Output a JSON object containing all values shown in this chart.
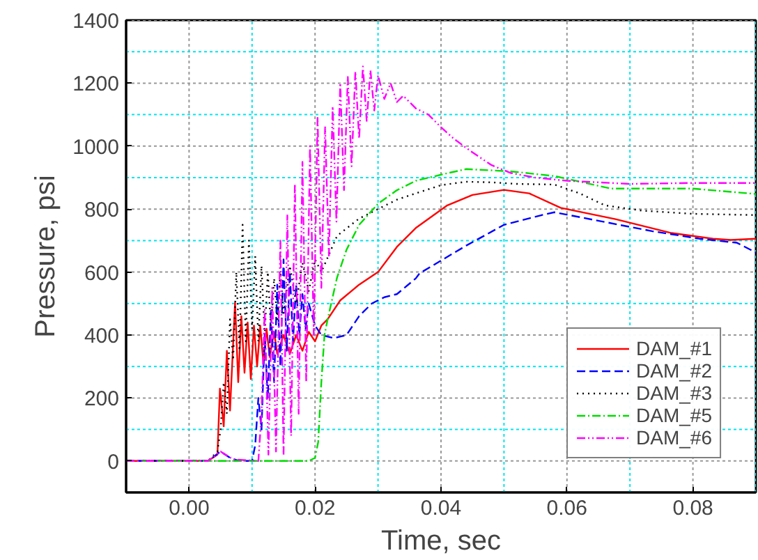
{
  "chart_data": {
    "type": "line",
    "xlabel": "Time, sec",
    "ylabel": "Pressure, psi",
    "xlim": [
      -0.01,
      0.09
    ],
    "xticks": [
      {
        "value": -0.01,
        "label": null
      },
      {
        "value": 0.0,
        "label": "0.00"
      },
      {
        "value": 0.01,
        "label": null
      },
      {
        "value": 0.02,
        "label": "0.02"
      },
      {
        "value": 0.03,
        "label": null
      },
      {
        "value": 0.04,
        "label": "0.04"
      },
      {
        "value": 0.05,
        "label": null
      },
      {
        "value": 0.06,
        "label": "0.06"
      },
      {
        "value": 0.07,
        "label": null
      },
      {
        "value": 0.08,
        "label": "0.08"
      },
      {
        "value": 0.09,
        "label": null
      }
    ],
    "ylim": [
      -100,
      1400
    ],
    "yticks": [
      {
        "value": -100,
        "label": null
      },
      0,
      {
        "value": 100,
        "label": null
      },
      200,
      {
        "value": 300,
        "label": null
      },
      400,
      {
        "value": 500,
        "label": null
      },
      600,
      {
        "value": 700,
        "label": null
      },
      800,
      {
        "value": 900,
        "label": null
      },
      1000,
      {
        "value": 1100,
        "label": null
      },
      1200,
      {
        "value": 1300,
        "label": null
      },
      1400
    ],
    "grid": true,
    "legend": "bottom right",
    "marker": "none",
    "series": [
      {
        "name": "DAM_#1",
        "color": "#ff0000",
        "line_style": "solid",
        "x": [
          -0.01,
          0.003,
          0.0045,
          0.0049,
          0.0055,
          0.006,
          0.0065,
          0.0073,
          0.0078,
          0.0083,
          0.0088,
          0.0093,
          0.0098,
          0.0103,
          0.0108,
          0.0113,
          0.0118,
          0.0123,
          0.0128,
          0.0135,
          0.014,
          0.015,
          0.016,
          0.017,
          0.018,
          0.019,
          0.02,
          0.021,
          0.022,
          0.024,
          0.027,
          0.03,
          0.033,
          0.036,
          0.041,
          0.045,
          0.05,
          0.054,
          0.059,
          0.0677,
          0.0766,
          0.0832,
          0.086,
          0.09
        ],
        "values": [
          0,
          0,
          20,
          230,
          110,
          350,
          160,
          503,
          250,
          460,
          280,
          440,
          260,
          430,
          300,
          430,
          310,
          420,
          330,
          410,
          340,
          400,
          340,
          400,
          350,
          410,
          380,
          430,
          450,
          510,
          560,
          600,
          680,
          740,
          812,
          845,
          861,
          850,
          804,
          768,
          724,
          706,
          702,
          706
        ]
      },
      {
        "name": "DAM_#2",
        "color": "#0000ff",
        "line_style": "dashed",
        "x": [
          -0.01,
          0.003,
          0.005,
          0.0065,
          0.008,
          0.01,
          0.0105,
          0.011,
          0.0115,
          0.012,
          0.0125,
          0.013,
          0.0135,
          0.014,
          0.0145,
          0.015,
          0.0155,
          0.016,
          0.0165,
          0.017,
          0.0175,
          0.018,
          0.0185,
          0.019,
          0.02,
          0.021,
          0.023,
          0.025,
          0.027,
          0.029,
          0.031,
          0.033,
          0.036,
          0.0366,
          0.044,
          0.05,
          0.056,
          0.058,
          0.066,
          0.0735,
          0.081,
          0.087,
          0.09
        ],
        "values": [
          0,
          0,
          30,
          10,
          0,
          0,
          50,
          200,
          100,
          400,
          200,
          480,
          250,
          560,
          300,
          640,
          350,
          600,
          380,
          560,
          400,
          530,
          420,
          500,
          430,
          400,
          390,
          400,
          460,
          500,
          520,
          530,
          580,
          596,
          684,
          750,
          781,
          790,
          759,
          730,
          706,
          693,
          662
        ]
      },
      {
        "name": "DAM_#3",
        "color": "#000000",
        "line_style": "dotted",
        "x": [
          -0.01,
          0.003,
          0.0045,
          0.005,
          0.0055,
          0.006,
          0.0065,
          0.007,
          0.0075,
          0.008,
          0.0085,
          0.009,
          0.0095,
          0.01,
          0.0105,
          0.011,
          0.0115,
          0.012,
          0.0125,
          0.013,
          0.0135,
          0.014,
          0.0145,
          0.015,
          0.016,
          0.017,
          0.018,
          0.019,
          0.02,
          0.021,
          0.0235,
          0.027,
          0.03,
          0.033,
          0.036,
          0.04,
          0.044,
          0.048,
          0.052,
          0.058,
          0.062,
          0.066,
          0.072,
          0.08,
          0.09
        ],
        "values": [
          0,
          0,
          30,
          100,
          250,
          150,
          450,
          320,
          600,
          350,
          750,
          380,
          700,
          420,
          650,
          380,
          620,
          400,
          600,
          420,
          580,
          450,
          600,
          470,
          620,
          500,
          630,
          540,
          640,
          600,
          715,
          770,
          800,
          830,
          850,
          876,
          887,
          885,
          880,
          878,
          850,
          812,
          795,
          785,
          781
        ]
      },
      {
        "name": "DAM_#5",
        "color": "#00dd00",
        "line_style": "dashdot",
        "x": [
          -0.01,
          0.019,
          0.02,
          0.0205,
          0.021,
          0.0215,
          0.022,
          0.0235,
          0.025,
          0.027,
          0.03,
          0.033,
          0.036,
          0.041,
          0.044,
          0.051,
          0.058,
          0.067,
          0.08,
          0.09
        ],
        "values": [
          0,
          0,
          10,
          60,
          250,
          400,
          450,
          583,
          671,
          750,
          817,
          860,
          890,
          914,
          927,
          920,
          905,
          865,
          865,
          848
        ]
      },
      {
        "name": "DAM_#6",
        "color": "#ff00ff",
        "line_style": "dashdotdot",
        "x": [
          -0.01,
          0.003,
          0.005,
          0.007,
          0.011,
          0.0115,
          0.012,
          0.0126,
          0.0132,
          0.0138,
          0.0145,
          0.015,
          0.0156,
          0.0162,
          0.0168,
          0.0174,
          0.018,
          0.0186,
          0.0192,
          0.0198,
          0.0204,
          0.021,
          0.0216,
          0.0222,
          0.0228,
          0.0234,
          0.024,
          0.0246,
          0.0252,
          0.0258,
          0.0264,
          0.027,
          0.0276,
          0.0282,
          0.0288,
          0.0294,
          0.03,
          0.031,
          0.032,
          0.033,
          0.034,
          0.036,
          0.038,
          0.04,
          0.042,
          0.045,
          0.048,
          0.051,
          0.055,
          0.06,
          0.065,
          0.07,
          0.08,
          0.09
        ],
        "values": [
          0,
          0,
          30,
          5,
          0,
          150,
          480,
          20,
          550,
          30,
          700,
          20,
          780,
          80,
          880,
          150,
          950,
          250,
          1000,
          400,
          1090,
          550,
          1060,
          650,
          1126,
          760,
          1200,
          860,
          1220,
          936,
          1237,
          1024,
          1253,
          1080,
          1240,
          1113,
          1225,
          1150,
          1200,
          1140,
          1160,
          1120,
          1100,
          1060,
          1024,
          980,
          940,
          915,
          900,
          890,
          885,
          880,
          883,
          883
        ]
      }
    ]
  }
}
